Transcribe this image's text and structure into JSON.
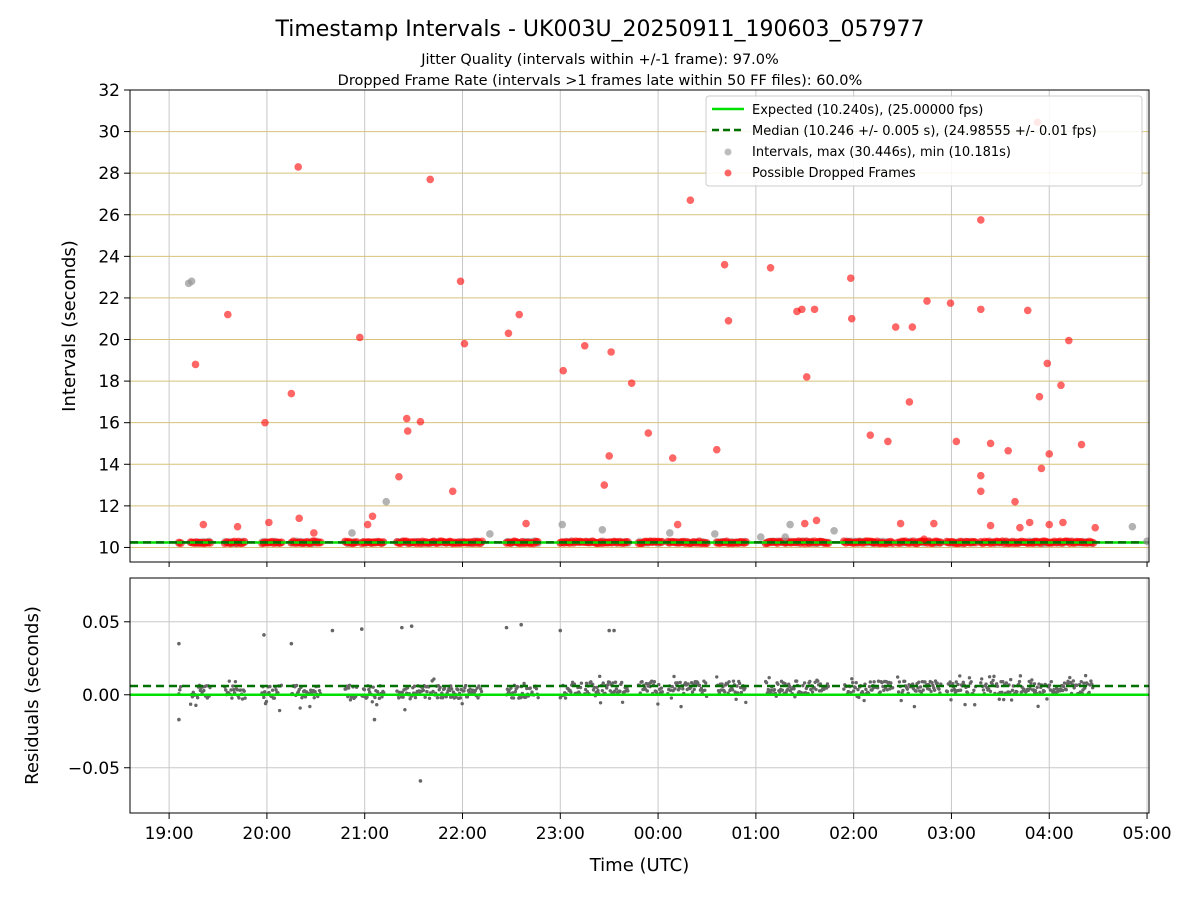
{
  "title": "Timestamp Intervals - UK003U_20250911_190603_057977",
  "subtitle_1": "Jitter Quality (intervals within +/-1 frame): 97.0%",
  "subtitle_2": "Dropped Frame Rate (intervals >1 frames late within 50 FF files): 60.0%",
  "colors": {
    "expected": "#00e000",
    "median": "#007000",
    "interval": "#999999",
    "dropped": "#ff0000",
    "residual": "#666666",
    "top_grid": "#d8c27a",
    "bottom_grid": "#c8c8c8",
    "vgrid": "#c8c8c8"
  },
  "chart_data": [
    {
      "type": "scatter",
      "panel": "top",
      "ylabel": "Intervals (seconds)",
      "ylim": [
        9.3,
        32
      ],
      "yticks": [
        "10",
        "12",
        "14",
        "16",
        "18",
        "20",
        "22",
        "24",
        "26",
        "28",
        "30",
        "32"
      ],
      "xlim": [
        18.6,
        29.02
      ],
      "grid": true,
      "legend_position": "top-right",
      "legend": [
        "Expected (10.240s), (25.00000 fps)",
        "Median (10.246 +/- 0.005 s), (24.98555 +/- 0.01 fps)",
        "Intervals, max (30.446s), min (10.181s)",
        "Possible Dropped Frames"
      ],
      "expected_interval": 10.24,
      "median_interval": 10.246,
      "dense_segments": [
        [
          19.1,
          19.12
        ],
        [
          19.22,
          19.42
        ],
        [
          19.57,
          19.78
        ],
        [
          19.95,
          20.15
        ],
        [
          20.25,
          20.55
        ],
        [
          20.8,
          20.92
        ],
        [
          20.97,
          21.2
        ],
        [
          21.33,
          21.88
        ],
        [
          21.88,
          22.2
        ],
        [
          22.45,
          22.78
        ],
        [
          23.0,
          23.22
        ],
        [
          23.25,
          23.7
        ],
        [
          23.8,
          24.05
        ],
        [
          24.1,
          24.5
        ],
        [
          24.6,
          24.9
        ],
        [
          25.1,
          25.3
        ],
        [
          25.3,
          25.75
        ],
        [
          25.9,
          26.2
        ],
        [
          26.2,
          26.4
        ],
        [
          26.45,
          26.9
        ],
        [
          26.95,
          27.25
        ],
        [
          27.3,
          27.85
        ],
        [
          27.85,
          28.45
        ]
      ],
      "series": [
        {
          "name": "Intervals, max (30.446s), min (10.181s)",
          "points": [
            [
              19.2,
              22.7
            ],
            [
              19.23,
              22.8
            ],
            [
              20.87,
              10.7
            ],
            [
              21.22,
              12.2
            ],
            [
              22.28,
              10.65
            ],
            [
              23.02,
              11.1
            ],
            [
              23.43,
              10.85
            ],
            [
              24.12,
              10.7
            ],
            [
              24.58,
              10.65
            ],
            [
              25.05,
              10.5
            ],
            [
              25.3,
              10.5
            ],
            [
              25.8,
              10.8
            ],
            [
              28.85,
              11.0
            ],
            [
              29.0,
              10.3
            ],
            [
              25.35,
              11.1
            ]
          ]
        },
        {
          "name": "Possible Dropped Frames",
          "points": [
            [
              19.27,
              18.8
            ],
            [
              19.35,
              11.1
            ],
            [
              19.6,
              21.2
            ],
            [
              19.7,
              11.0
            ],
            [
              19.98,
              16.0
            ],
            [
              20.02,
              11.2
            ],
            [
              20.25,
              17.4
            ],
            [
              20.32,
              28.3
            ],
            [
              20.33,
              11.4
            ],
            [
              20.48,
              10.7
            ],
            [
              20.95,
              20.1
            ],
            [
              21.03,
              11.1
            ],
            [
              21.08,
              11.5
            ],
            [
              21.35,
              13.4
            ],
            [
              21.43,
              16.2
            ],
            [
              21.44,
              15.6
            ],
            [
              21.57,
              16.05
            ],
            [
              21.67,
              27.7
            ],
            [
              21.9,
              12.7
            ],
            [
              21.98,
              22.8
            ],
            [
              22.02,
              19.8
            ],
            [
              22.47,
              20.3
            ],
            [
              22.58,
              21.2
            ],
            [
              22.65,
              11.15
            ],
            [
              23.03,
              18.5
            ],
            [
              23.25,
              19.7
            ],
            [
              23.45,
              13.0
            ],
            [
              23.5,
              14.4
            ],
            [
              23.52,
              19.4
            ],
            [
              23.73,
              17.9
            ],
            [
              23.9,
              15.5
            ],
            [
              24.15,
              14.3
            ],
            [
              24.2,
              11.1
            ],
            [
              24.33,
              26.7
            ],
            [
              24.6,
              14.7
            ],
            [
              24.68,
              23.6
            ],
            [
              24.72,
              20.9
            ],
            [
              25.15,
              23.45
            ],
            [
              25.42,
              21.35
            ],
            [
              25.47,
              21.45
            ],
            [
              25.5,
              11.15
            ],
            [
              25.52,
              18.2
            ],
            [
              25.6,
              21.45
            ],
            [
              25.62,
              11.3
            ],
            [
              25.97,
              22.95
            ],
            [
              25.98,
              21.0
            ],
            [
              26.17,
              15.4
            ],
            [
              26.35,
              15.1
            ],
            [
              26.43,
              20.6
            ],
            [
              26.48,
              11.15
            ],
            [
              26.57,
              17.0
            ],
            [
              26.6,
              20.6
            ],
            [
              26.75,
              21.85
            ],
            [
              26.82,
              11.15
            ],
            [
              26.99,
              21.75
            ],
            [
              27.05,
              15.1
            ],
            [
              27.3,
              21.45
            ],
            [
              27.3,
              25.75
            ],
            [
              27.3,
              13.45
            ],
            [
              27.3,
              12.7
            ],
            [
              27.4,
              15.0
            ],
            [
              27.4,
              11.05
            ],
            [
              27.58,
              14.65
            ],
            [
              27.65,
              12.2
            ],
            [
              27.7,
              10.95
            ],
            [
              27.78,
              21.4
            ],
            [
              27.8,
              11.2
            ],
            [
              27.88,
              30.45
            ],
            [
              27.9,
              17.25
            ],
            [
              27.92,
              13.8
            ],
            [
              27.98,
              18.85
            ],
            [
              28.0,
              14.5
            ],
            [
              28.0,
              11.1
            ],
            [
              28.12,
              17.8
            ],
            [
              28.14,
              11.2
            ],
            [
              28.2,
              19.95
            ],
            [
              28.33,
              14.95
            ],
            [
              28.47,
              10.95
            ],
            [
              26.72,
              10.4
            ]
          ]
        }
      ]
    },
    {
      "type": "scatter",
      "panel": "bottom",
      "ylabel": "Residuals (seconds)",
      "xlabel": "Time (UTC)",
      "ylim": [
        -0.081,
        0.08
      ],
      "yticks": [
        "−0.05",
        "0.00",
        "0.05"
      ],
      "ytick_values": [
        -0.05,
        0,
        0.05
      ],
      "xlim": [
        18.6,
        29.02
      ],
      "xticks": [
        "19:00",
        "20:00",
        "21:00",
        "22:00",
        "23:00",
        "00:00",
        "01:00",
        "02:00",
        "03:00",
        "04:00",
        "05:00"
      ],
      "xtick_values": [
        19,
        20,
        21,
        22,
        23,
        24,
        25,
        26,
        27,
        28,
        29
      ],
      "expected_residual": 0.0,
      "median_residual": 0.006,
      "outliers": [
        [
          19.1,
          0.035
        ],
        [
          19.97,
          0.041
        ],
        [
          20.25,
          0.035
        ],
        [
          20.67,
          0.044
        ],
        [
          20.97,
          0.045
        ],
        [
          21.38,
          0.046
        ],
        [
          21.48,
          0.047
        ],
        [
          22.45,
          0.046
        ],
        [
          22.6,
          0.048
        ],
        [
          23.0,
          0.044
        ],
        [
          23.5,
          0.044
        ],
        [
          23.55,
          0.044
        ],
        [
          21.57,
          -0.059
        ],
        [
          19.1,
          -0.017
        ],
        [
          21.1,
          -0.017
        ]
      ]
    }
  ]
}
